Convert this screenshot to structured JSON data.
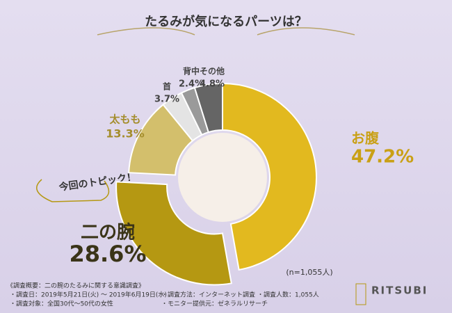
{
  "chart_data": {
    "type": "donut",
    "title": "たるみが気になるパーツは？",
    "categories": [
      "お腹",
      "二の腕",
      "太もも",
      "首",
      "背中",
      "その他"
    ],
    "values": [
      47.2,
      28.6,
      13.3,
      3.7,
      2.4,
      4.8
    ],
    "value_labels": [
      "47.2%",
      "28.6%",
      "13.3%",
      "3.7%",
      "2.4%",
      "4.8%"
    ],
    "colors": [
      "#e2b91f",
      "#b59812",
      "#d3bf6c",
      "#e4e4e4",
      "#9a9a9a",
      "#656565"
    ],
    "highlight": "今回のトピック！",
    "note": "(n=1,055人)"
  },
  "survey": {
    "heading": "《調査概要：二の腕のたるみに関する意識調査》",
    "items": [
      "・調査日：2019年5月21日(火) ～ 2019年6月19日(水)",
      "・調査対象：全国30代～50代の女性",
      "・調査方法：インターネット調査",
      "・モニター提供元：ゼネラルリサーチ",
      "・調査人数：1,055人"
    ]
  },
  "brand": "RITSUBI"
}
